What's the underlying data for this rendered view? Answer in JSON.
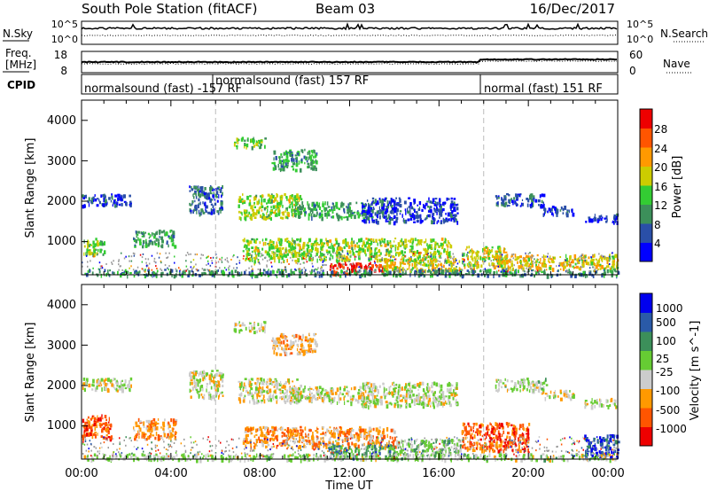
{
  "header": {
    "station": "South Pole Station (fitACF)",
    "beam": "Beam 03",
    "date": "16/Dec/2017"
  },
  "noise_panel": {
    "left_label": "N.Sky",
    "left_ticks": [
      "10^5",
      "10^0"
    ],
    "right_label": "N.Search",
    "right_ticks": [
      "10^5",
      "10^0"
    ]
  },
  "freq_panel": {
    "left_label_1": "Freq.",
    "left_label_2": "[MHz]",
    "left_ticks": [
      "18",
      "8"
    ],
    "right_label": "Nave",
    "right_ticks": [
      "60",
      "0"
    ]
  },
  "cpid_panel": {
    "label": "CPID",
    "modes": [
      {
        "text": "normalsound (fast) -157 RF",
        "start_hour": 0
      },
      {
        "text": "normalsound (fast) 157 RF",
        "start_hour": 6
      },
      {
        "text": "normal (fast) 151 RF",
        "start_hour": 18
      }
    ]
  },
  "colors": {
    "power": [
      "#0000ff",
      "#2a4fa8",
      "#3c8f5a",
      "#33cc33",
      "#cccc00",
      "#ff9900",
      "#ff5500",
      "#ee0000"
    ],
    "velocity": [
      "#ee0000",
      "#ff5500",
      "#ff9900",
      "#cccccc",
      "#66cc33",
      "#3c8f5a",
      "#2a5aa8",
      "#0000ee"
    ],
    "ground_scatter": "#999999"
  },
  "chart_data": [
    {
      "type": "heatmap",
      "name": "power",
      "xlabel": "",
      "ylabel": "Slant Range [km]",
      "xlim_hours": [
        0,
        24
      ],
      "ylim_km": [
        180,
        4500
      ],
      "y_ticks": [
        "1000",
        "2000",
        "3000",
        "4000"
      ],
      "colorbar": {
        "label": "Power [dB]",
        "ticks": [
          "4",
          "8",
          "12",
          "16",
          "20",
          "24",
          "28"
        ]
      },
      "scatter_regions": [
        {
          "t0": 0.0,
          "t1": 1.0,
          "r0": 700,
          "r1": 1100,
          "level": 0.45
        },
        {
          "t0": 0.0,
          "t1": 2.2,
          "r0": 1900,
          "r1": 2200,
          "level": 0.15
        },
        {
          "t0": 2.3,
          "t1": 4.2,
          "r0": 900,
          "r1": 1300,
          "level": 0.35
        },
        {
          "t0": 4.8,
          "t1": 6.3,
          "r0": 1700,
          "r1": 2400,
          "level": 0.2
        },
        {
          "t0": 6.8,
          "t1": 8.2,
          "r0": 3350,
          "r1": 3600,
          "level": 0.45
        },
        {
          "t0": 7.0,
          "t1": 9.8,
          "r0": 1600,
          "r1": 2200,
          "level": 0.5
        },
        {
          "t0": 8.5,
          "t1": 10.5,
          "r0": 2800,
          "r1": 3300,
          "level": 0.35
        },
        {
          "t0": 9.5,
          "t1": 13.0,
          "r0": 1600,
          "r1": 2000,
          "level": 0.35
        },
        {
          "t0": 12.5,
          "t1": 16.8,
          "r0": 1500,
          "r1": 2100,
          "level": 0.15
        },
        {
          "t0": 7.2,
          "t1": 16.5,
          "r0": 550,
          "r1": 1100,
          "level": 0.5
        },
        {
          "t0": 11.0,
          "t1": 13.5,
          "r0": 230,
          "r1": 500,
          "level": 0.92
        },
        {
          "t0": 13.5,
          "t1": 17.0,
          "r0": 300,
          "r1": 600,
          "level": 0.6
        },
        {
          "t0": 17.0,
          "t1": 19.0,
          "r0": 400,
          "r1": 900,
          "level": 0.55
        },
        {
          "t0": 18.5,
          "t1": 20.8,
          "r0": 1900,
          "r1": 2200,
          "level": 0.2
        },
        {
          "t0": 20.5,
          "t1": 22.0,
          "r0": 1700,
          "r1": 1900,
          "level": 0.15
        },
        {
          "t0": 22.5,
          "t1": 24.0,
          "r0": 1500,
          "r1": 1700,
          "level": 0.12
        },
        {
          "t0": 18.5,
          "t1": 24.0,
          "r0": 350,
          "r1": 700,
          "level": 0.6
        },
        {
          "t0": 0.0,
          "t1": 24.0,
          "r0": 180,
          "r1": 330,
          "level": 0.3
        }
      ]
    },
    {
      "type": "heatmap",
      "name": "velocity",
      "xlabel": "Time UT",
      "ylabel": "Slant Range [km]",
      "xlim_hours": [
        0,
        24
      ],
      "ylim_km": [
        180,
        4500
      ],
      "x_ticks": [
        "00:00",
        "04:00",
        "08:00",
        "12:00",
        "16:00",
        "20:00",
        "00:00"
      ],
      "y_ticks": [
        "1000",
        "2000",
        "3000",
        "4000"
      ],
      "colorbar": {
        "label": "Velocity [m s^-1]",
        "ticks": [
          "-1000",
          "-500",
          "-100",
          "-25",
          "25",
          "100",
          "500",
          "1000"
        ]
      },
      "scatter_regions": [
        {
          "t0": 0.0,
          "t1": 1.3,
          "r0": 700,
          "r1": 1300,
          "level": 0.2
        },
        {
          "t0": 0.0,
          "t1": 2.2,
          "r0": 1900,
          "r1": 2200,
          "level": 0.45
        },
        {
          "t0": 2.3,
          "t1": 4.2,
          "r0": 700,
          "r1": 1200,
          "level": 0.3
        },
        {
          "t0": 4.8,
          "t1": 6.3,
          "r0": 1700,
          "r1": 2400,
          "level": 0.45
        },
        {
          "t0": 6.8,
          "t1": 8.2,
          "r0": 3350,
          "r1": 3600,
          "level": 0.45
        },
        {
          "t0": 7.0,
          "t1": 9.8,
          "r0": 1600,
          "r1": 2200,
          "level": 0.43
        },
        {
          "t0": 8.5,
          "t1": 10.5,
          "r0": 2800,
          "r1": 3300,
          "level": 0.35
        },
        {
          "t0": 9.5,
          "t1": 13.0,
          "r0": 1600,
          "r1": 2000,
          "level": 0.45
        },
        {
          "t0": 12.5,
          "t1": 16.8,
          "r0": 1500,
          "r1": 2100,
          "level": 0.48
        },
        {
          "t0": 7.2,
          "t1": 14.0,
          "r0": 500,
          "r1": 1000,
          "level": 0.3
        },
        {
          "t0": 11.0,
          "t1": 14.0,
          "r0": 230,
          "r1": 550,
          "level": 0.68
        },
        {
          "t0": 14.0,
          "t1": 17.0,
          "r0": 300,
          "r1": 700,
          "level": 0.55
        },
        {
          "t0": 17.0,
          "t1": 20.0,
          "r0": 400,
          "r1": 1100,
          "level": 0.18
        },
        {
          "t0": 18.5,
          "t1": 20.8,
          "r0": 1900,
          "r1": 2200,
          "level": 0.5
        },
        {
          "t0": 20.5,
          "t1": 22.0,
          "r0": 1700,
          "r1": 1900,
          "level": 0.45
        },
        {
          "t0": 22.5,
          "t1": 24.0,
          "r0": 1500,
          "r1": 1700,
          "level": 0.45
        },
        {
          "t0": 22.5,
          "t1": 24.0,
          "r0": 250,
          "r1": 800,
          "level": 0.85
        },
        {
          "t0": 0.0,
          "t1": 24.0,
          "r0": 180,
          "r1": 330,
          "level": 0.5
        }
      ]
    }
  ]
}
